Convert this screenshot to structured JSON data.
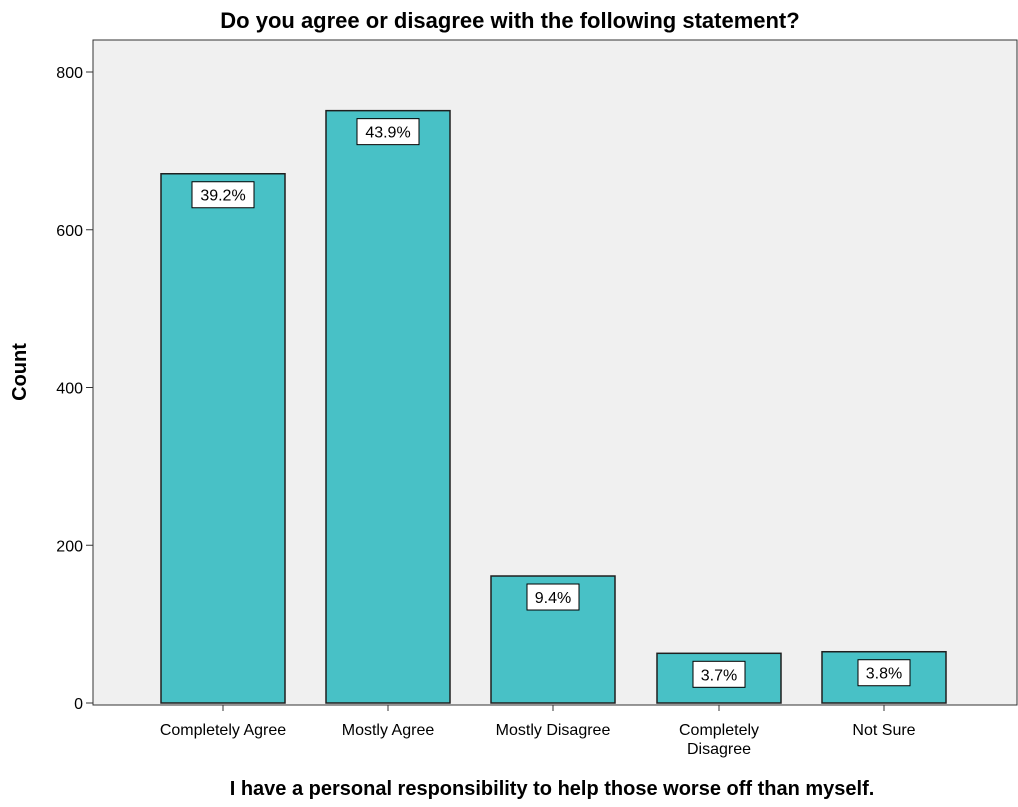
{
  "chart_data": {
    "type": "bar",
    "title": "Do you agree or disagree with the following statement?",
    "xlabel": "I have a personal responsibility to help those worse off than myself.",
    "ylabel": "Count",
    "ylim": [
      0,
      840
    ],
    "yticks": [
      "0",
      "200",
      "400",
      "600",
      "800"
    ],
    "categories": [
      [
        "Completely Agree"
      ],
      [
        "Mostly Agree"
      ],
      [
        "Mostly Disagree"
      ],
      [
        "Completely",
        "Disagree"
      ],
      [
        "Not Sure"
      ]
    ],
    "values": [
      671,
      751,
      161,
      63,
      65
    ],
    "data_labels": [
      "39.2%",
      "43.9%",
      "9.4%",
      "3.7%",
      "3.8%"
    ],
    "grid": false,
    "colors": {
      "bar": "#48c1c6",
      "bar_stroke": "#1f1f1f",
      "plot_background": "#f0f0f0",
      "axis": "#333333"
    }
  }
}
